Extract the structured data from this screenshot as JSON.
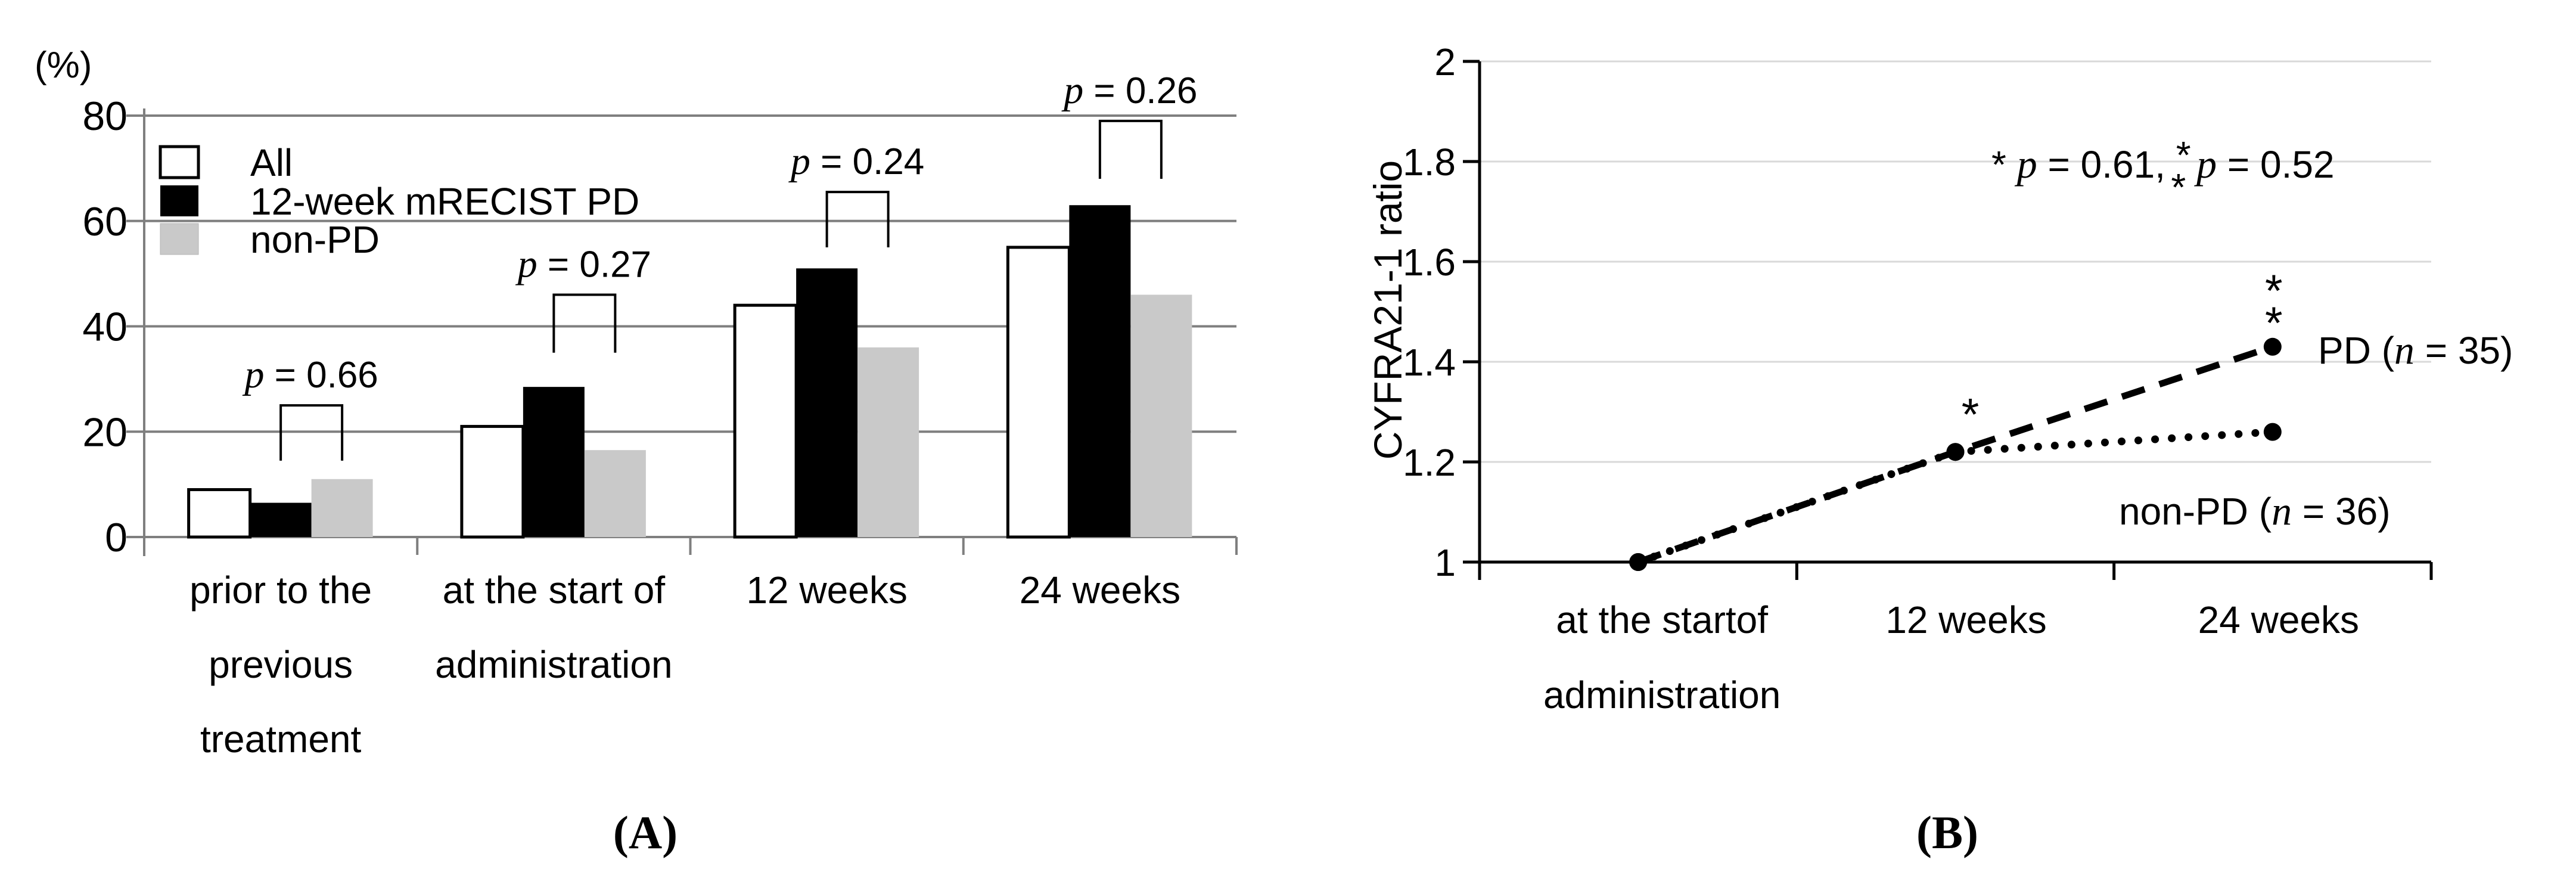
{
  "figure": {
    "panel_a_caption": "(A)",
    "panel_b_caption": "(B)"
  },
  "colors": {
    "bar_all_fill": "#ffffff",
    "bar_pd_fill": "#000000",
    "bar_nonpd_fill": "#c9c9c9",
    "bar_stroke": "#000000",
    "grid_a": "#7f7f7f",
    "grid_b": "#d9d9d9",
    "axis_b": "#000000",
    "text": "#000000"
  },
  "chart_data": [
    {
      "type": "bar",
      "panel": "A",
      "unit_label": "(%)",
      "ylim": [
        0,
        80
      ],
      "yticks": [
        0,
        20,
        40,
        60,
        80
      ],
      "grid": true,
      "legend_position": "top-left",
      "categories": [
        [
          "prior to the",
          "previous",
          "treatment"
        ],
        [
          "at the start of",
          "administration"
        ],
        [
          "12 weeks"
        ],
        [
          "24 weeks"
        ]
      ],
      "series": [
        {
          "name": "All",
          "values": [
            9,
            21,
            44,
            55
          ]
        },
        {
          "name": "12-week mRECIST PD",
          "values": [
            6.5,
            28.5,
            51,
            63
          ]
        },
        {
          "name": "non-PD",
          "values": [
            11,
            16.5,
            36,
            46
          ]
        }
      ],
      "comparisons": [
        {
          "label_parts": [
            {
              "text": "p",
              "italic": true
            },
            {
              "text": " = 0.66"
            }
          ],
          "between": [
            1,
            2
          ],
          "top": 25,
          "leg_bottom": 14.5
        },
        {
          "label_parts": [
            {
              "text": "p",
              "italic": true
            },
            {
              "text": " = 0.27"
            }
          ],
          "between": [
            1,
            2
          ],
          "top": 46,
          "leg_bottom": 35
        },
        {
          "label_parts": [
            {
              "text": "p",
              "italic": true
            },
            {
              "text": " = 0.24"
            }
          ],
          "between": [
            1,
            2
          ],
          "top": 65.5,
          "leg_bottom": 55
        },
        {
          "label_parts": [
            {
              "text": "p",
              "italic": true
            },
            {
              "text": " = 0.26"
            }
          ],
          "between": [
            1,
            2
          ],
          "top": 79,
          "leg_bottom": 68
        }
      ]
    },
    {
      "type": "line",
      "panel": "B",
      "ylabel": "CYFRA21-1 ratio",
      "ylim": [
        1,
        2
      ],
      "yticks": [
        1,
        1.2,
        1.4,
        1.6,
        1.8,
        2
      ],
      "grid": true,
      "categories": [
        [
          "at the startof",
          "administration"
        ],
        [
          "12 weeks"
        ],
        [
          "24 weeks"
        ]
      ],
      "series": [
        {
          "name": "PD",
          "label_parts": [
            {
              "text": "PD ("
            },
            {
              "text": "n",
              "italic": true
            },
            {
              "text": " = 35)"
            }
          ],
          "style": "dashed",
          "values": [
            1,
            1.22,
            1.43
          ]
        },
        {
          "name": "non-PD",
          "label_parts": [
            {
              "text": "non-PD ("
            },
            {
              "text": "n",
              "italic": true
            },
            {
              "text": " = 36)"
            }
          ],
          "style": "dotted",
          "values": [
            1,
            1.22,
            1.26
          ]
        }
      ],
      "annotation_parts": [
        {
          "text": "* "
        },
        {
          "text": "p",
          "italic": true
        },
        {
          "text": " = 0.61, "
        },
        {
          "stack": "*"
        },
        {
          "text": " "
        },
        {
          "text": "p",
          "italic": true
        },
        {
          "text": " = 0.52"
        }
      ],
      "markers": [
        {
          "symbol": "*",
          "stacked": false,
          "cat": 1,
          "yval": 1.315,
          "dx": 25
        },
        {
          "symbol": "*",
          "stacked": true,
          "cat": 2,
          "yval": 1.53,
          "dx": 2
        }
      ]
    }
  ]
}
